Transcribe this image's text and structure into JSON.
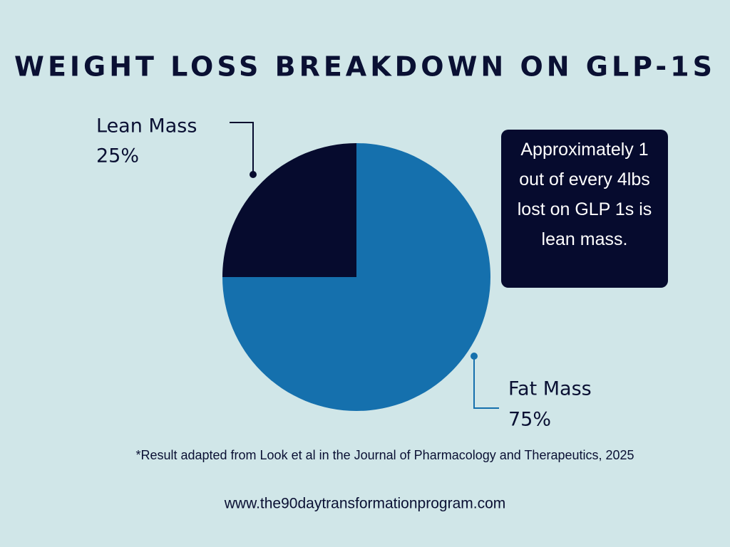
{
  "chart_data": {
    "type": "pie",
    "title": "WEIGHT LOSS BREAKDOWN ON GLP-1S",
    "categories": [
      "Lean Mass",
      "Fat Mass"
    ],
    "values": [
      25,
      75
    ],
    "value_labels": [
      "25%",
      "75%"
    ],
    "colors": [
      "#060b2e",
      "#1570ad"
    ],
    "annotation": "Approximately 1 out of every 4lbs lost on GLP 1s is lean mass.",
    "footnote": "*Result adapted from Look et al in the Journal of Pharmacology and Therapeutics, 2025",
    "website": "www.the90daytransformationprogram.com"
  }
}
